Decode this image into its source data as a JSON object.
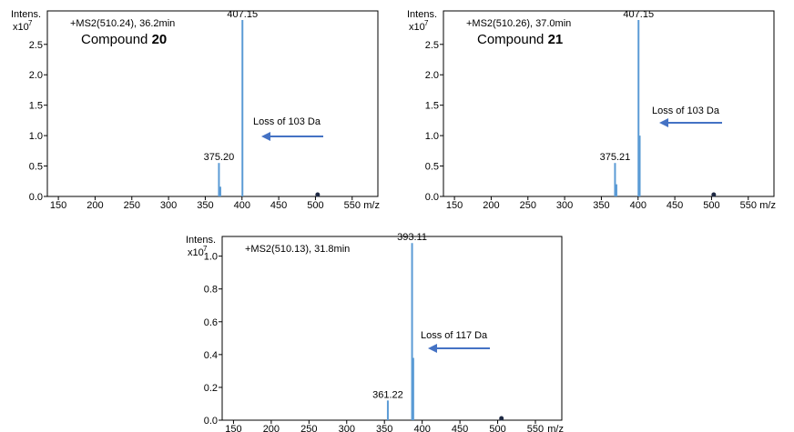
{
  "chart_data": [
    {
      "type": "bar",
      "ylabel": "Intens.",
      "yscale_label": "x10",
      "yscale_exp": "7",
      "xlabel": "m/z",
      "scan": "+MS2(510.24),  36.2min",
      "compound_prefix": "Compound ",
      "compound_number": "20",
      "xlim": [
        135,
        585
      ],
      "ylim": [
        0,
        3.05
      ],
      "xticks": [
        "150",
        "200",
        "250",
        "300",
        "350",
        "400",
        "450",
        "500",
        "550"
      ],
      "yticks": [
        "0.0",
        "0.5",
        "1.0",
        "1.5",
        "2.0",
        "2.5"
      ],
      "yticks_values": [
        0,
        0.5,
        1.0,
        1.5,
        2.0,
        2.5
      ],
      "xticks_values": [
        150,
        200,
        250,
        300,
        350,
        400,
        450,
        500,
        550
      ],
      "peaks": [
        {
          "mz": 368.6,
          "intensity": 0.55,
          "label": "375.20"
        },
        {
          "mz": 370.5,
          "intensity": 0.16,
          "label": ""
        },
        {
          "mz": 400.6,
          "intensity": 2.9,
          "label": "407.15"
        }
      ],
      "precursor_mz": 503,
      "annotation": "Loss of 103  Da"
    },
    {
      "type": "bar",
      "ylabel": "Intens.",
      "yscale_label": "x10",
      "yscale_exp": "7",
      "xlabel": "m/z",
      "scan": "+MS2(510.26),  37.0min",
      "compound_prefix": "Compound ",
      "compound_number": "21",
      "xlim": [
        135,
        585
      ],
      "ylim": [
        0,
        3.05
      ],
      "xticks": [
        "150",
        "200",
        "250",
        "300",
        "350",
        "400",
        "450",
        "500",
        "550"
      ],
      "yticks": [
        "0.0",
        "0.5",
        "1.0",
        "1.5",
        "2.0",
        "2.5"
      ],
      "yticks_values": [
        0,
        0.5,
        1.0,
        1.5,
        2.0,
        2.5
      ],
      "xticks_values": [
        150,
        200,
        250,
        300,
        350,
        400,
        450,
        500,
        550
      ],
      "peaks": [
        {
          "mz": 368.6,
          "intensity": 0.55,
          "label": "375.21"
        },
        {
          "mz": 370.5,
          "intensity": 0.2,
          "label": ""
        },
        {
          "mz": 400.6,
          "intensity": 2.9,
          "label": "407.15"
        },
        {
          "mz": 402.2,
          "intensity": 1.0,
          "label": ""
        }
      ],
      "precursor_mz": 503,
      "annotation": "Loss of 103  Da"
    },
    {
      "type": "bar",
      "ylabel": "Intens.",
      "yscale_label": "x10",
      "yscale_exp": "7",
      "xlabel": "m/z",
      "scan": "+MS2(510.13),  31.8min",
      "compound_prefix": "",
      "compound_number": "",
      "xlim": [
        135,
        585
      ],
      "ylim": [
        0,
        1.12
      ],
      "xticks": [
        "150",
        "200",
        "250",
        "300",
        "350",
        "400",
        "450",
        "500",
        "550"
      ],
      "yticks": [
        "0.0",
        "0.2",
        "0.4",
        "0.6",
        "0.8",
        "1.0"
      ],
      "yticks_values": [
        0,
        0.2,
        0.4,
        0.6,
        0.8,
        1.0
      ],
      "xticks_values": [
        150,
        200,
        250,
        300,
        350,
        400,
        450,
        500,
        550
      ],
      "peaks": [
        {
          "mz": 354.5,
          "intensity": 0.12,
          "label": "361.22"
        },
        {
          "mz": 386.6,
          "intensity": 1.08,
          "label": "393.11"
        },
        {
          "mz": 388.2,
          "intensity": 0.38,
          "label": ""
        }
      ],
      "precursor_mz": 505,
      "annotation": "Loss of 117  Da"
    }
  ]
}
